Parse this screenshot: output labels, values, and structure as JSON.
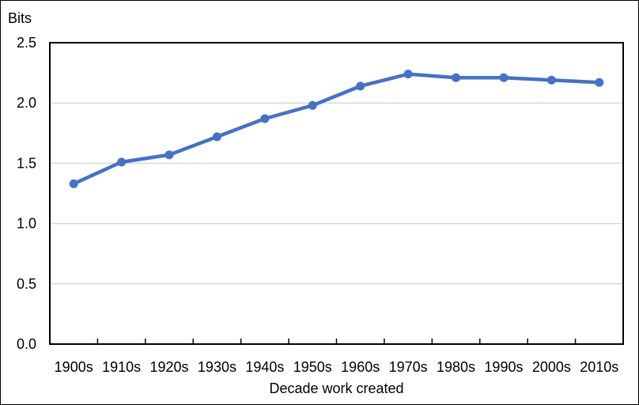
{
  "chart": {
    "y_axis_title": "Bits",
    "x_axis_title": "Decade work created"
  },
  "chart_data": {
    "type": "line",
    "title": "",
    "xlabel": "Decade work created",
    "ylabel": "Bits",
    "categories": [
      "1900s",
      "1910s",
      "1920s",
      "1930s",
      "1940s",
      "1950s",
      "1960s",
      "1970s",
      "1980s",
      "1990s",
      "2000s",
      "2010s"
    ],
    "values": [
      1.33,
      1.51,
      1.57,
      1.72,
      1.87,
      1.98,
      2.14,
      2.24,
      2.21,
      2.21,
      2.19,
      2.17
    ],
    "ylim": [
      0,
      2.5
    ],
    "y_ticks": [
      0,
      0.5,
      1.0,
      1.5,
      2.0,
      2.5
    ],
    "y_tick_labels": [
      "0.0",
      "0.5",
      "1.0",
      "1.5",
      "2.0",
      "2.5"
    ],
    "grid": "horizontal",
    "legend": "none",
    "marker": "circle",
    "colors": {
      "line": "#4472C4",
      "marker": "#4472C4",
      "gridline": "#D9D9D9",
      "axis": "#000000",
      "text": "#000000",
      "background": "#FFFFFF"
    }
  }
}
